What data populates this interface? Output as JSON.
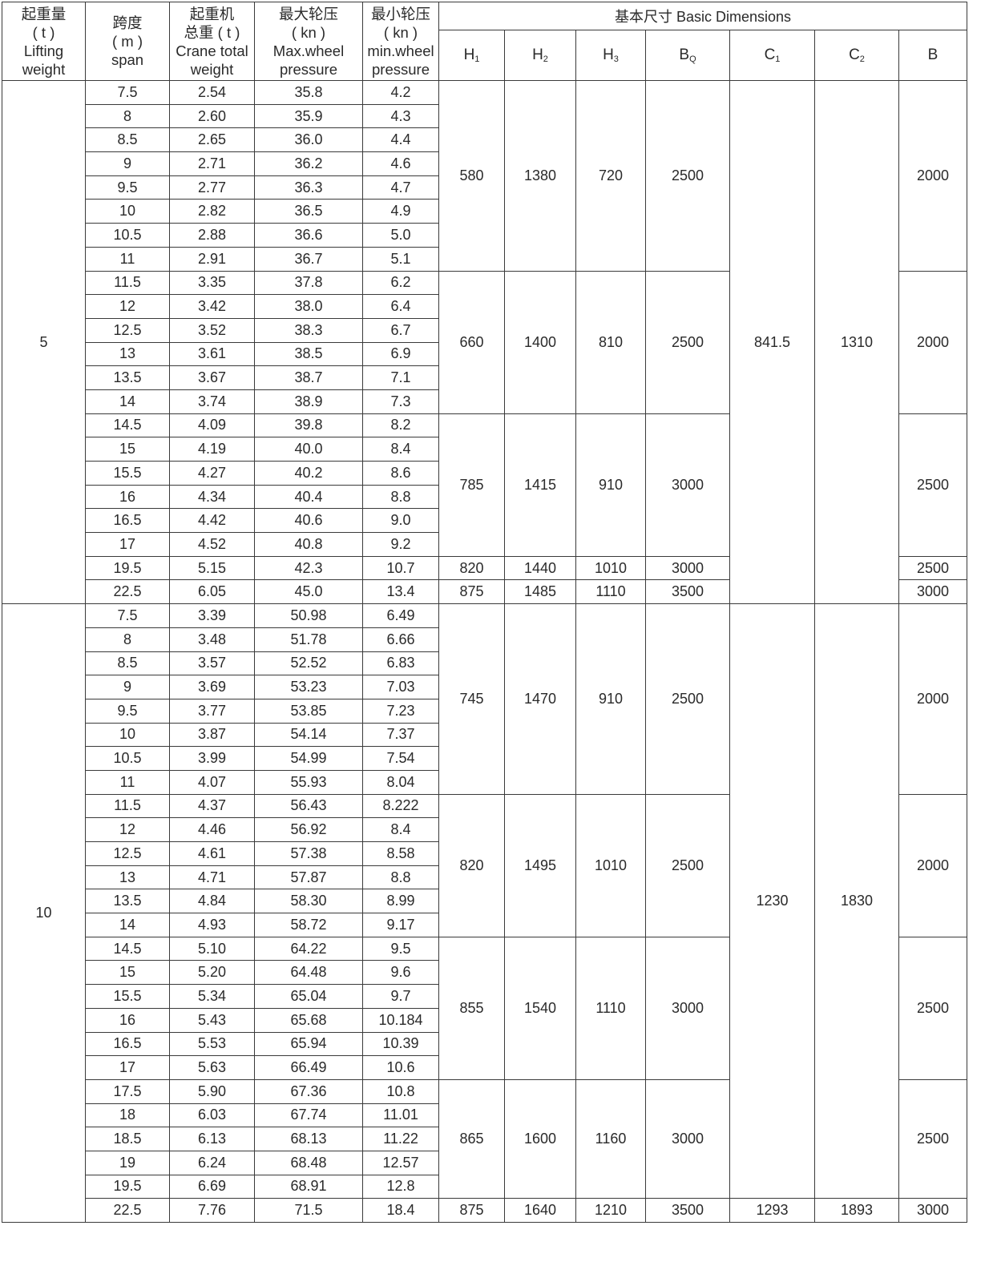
{
  "header": {
    "columns": [
      {
        "lines": [
          "起重量",
          "( t )",
          "Lifting",
          "weight"
        ]
      },
      {
        "lines": [
          "跨度",
          "( m )",
          "span"
        ]
      },
      {
        "lines": [
          "起重机",
          "总重 ( t )",
          "Crane total",
          "weight"
        ]
      },
      {
        "lines": [
          "最大轮压",
          "( kn )",
          "Max.wheel",
          "pressure"
        ]
      },
      {
        "lines": [
          "最小轮压",
          "( kn )",
          "min.wheel",
          "pressure"
        ]
      }
    ],
    "dimensions_title": "基本尺寸 Basic Dimensions",
    "dimensions": [
      {
        "base": "H",
        "sub": "1"
      },
      {
        "base": "H",
        "sub": "2"
      },
      {
        "base": "H",
        "sub": "3"
      },
      {
        "base": "B",
        "sub": "Q"
      },
      {
        "base": "C",
        "sub": "1"
      },
      {
        "base": "C",
        "sub": "2"
      },
      {
        "base": "B",
        "sub": ""
      }
    ]
  },
  "groups": [
    {
      "lifting": "5",
      "rows": [
        [
          "7.5",
          "2.54",
          "35.8",
          "4.2"
        ],
        [
          "8",
          "2.60",
          "35.9",
          "4.3"
        ],
        [
          "8.5",
          "2.65",
          "36.0",
          "4.4"
        ],
        [
          "9",
          "2.71",
          "36.2",
          "4.6"
        ],
        [
          "9.5",
          "2.77",
          "36.3",
          "4.7"
        ],
        [
          "10",
          "2.82",
          "36.5",
          "4.9"
        ],
        [
          "10.5",
          "2.88",
          "36.6",
          "5.0"
        ],
        [
          "11",
          "2.91",
          "36.7",
          "5.1"
        ],
        [
          "11.5",
          "3.35",
          "37.8",
          "6.2"
        ],
        [
          "12",
          "3.42",
          "38.0",
          "6.4"
        ],
        [
          "12.5",
          "3.52",
          "38.3",
          "6.7"
        ],
        [
          "13",
          "3.61",
          "38.5",
          "6.9"
        ],
        [
          "13.5",
          "3.67",
          "38.7",
          "7.1"
        ],
        [
          "14",
          "3.74",
          "38.9",
          "7.3"
        ],
        [
          "14.5",
          "4.09",
          "39.8",
          "8.2"
        ],
        [
          "15",
          "4.19",
          "40.0",
          "8.4"
        ],
        [
          "15.5",
          "4.27",
          "40.2",
          "8.6"
        ],
        [
          "16",
          "4.34",
          "40.4",
          "8.8"
        ],
        [
          "16.5",
          "4.42",
          "40.6",
          "9.0"
        ],
        [
          "17",
          "4.52",
          "40.8",
          "9.2"
        ],
        [
          "19.5",
          "5.15",
          "42.3",
          "10.7"
        ],
        [
          "22.5",
          "6.05",
          "45.0",
          "13.4"
        ]
      ],
      "dims": [
        {
          "rows": 8,
          "H1": "580",
          "H2": "1380",
          "H3": "720",
          "BQ": "2500",
          "B": "2000"
        },
        {
          "rows": 6,
          "H1": "660",
          "H2": "1400",
          "H3": "810",
          "BQ": "2500",
          "B": "2000"
        },
        {
          "rows": 6,
          "H1": "785",
          "H2": "1415",
          "H3": "910",
          "BQ": "3000",
          "B": "2500"
        },
        {
          "rows": 1,
          "H1": "820",
          "H2": "1440",
          "H3": "1010",
          "BQ": "3000",
          "B": "2500"
        },
        {
          "rows": 1,
          "H1": "875",
          "H2": "1485",
          "H3": "1110",
          "BQ": "3500",
          "B": "3000"
        }
      ],
      "c": [
        {
          "rows": 22,
          "C1": "841.5",
          "C2": "1310"
        }
      ]
    },
    {
      "lifting": "10",
      "rows": [
        [
          "7.5",
          "3.39",
          "50.98",
          "6.49"
        ],
        [
          "8",
          "3.48",
          "51.78",
          "6.66"
        ],
        [
          "8.5",
          "3.57",
          "52.52",
          "6.83"
        ],
        [
          "9",
          "3.69",
          "53.23",
          "7.03"
        ],
        [
          "9.5",
          "3.77",
          "53.85",
          "7.23"
        ],
        [
          "10",
          "3.87",
          "54.14",
          "7.37"
        ],
        [
          "10.5",
          "3.99",
          "54.99",
          "7.54"
        ],
        [
          "11",
          "4.07",
          "55.93",
          "8.04"
        ],
        [
          "11.5",
          "4.37",
          "56.43",
          "8.222"
        ],
        [
          "12",
          "4.46",
          "56.92",
          "8.4"
        ],
        [
          "12.5",
          "4.61",
          "57.38",
          "8.58"
        ],
        [
          "13",
          "4.71",
          "57.87",
          "8.8"
        ],
        [
          "13.5",
          "4.84",
          "58.30",
          "8.99"
        ],
        [
          "14",
          "4.93",
          "58.72",
          "9.17"
        ],
        [
          "14.5",
          "5.10",
          "64.22",
          "9.5"
        ],
        [
          "15",
          "5.20",
          "64.48",
          "9.6"
        ],
        [
          "15.5",
          "5.34",
          "65.04",
          "9.7"
        ],
        [
          "16",
          "5.43",
          "65.68",
          "10.184"
        ],
        [
          "16.5",
          "5.53",
          "65.94",
          "10.39"
        ],
        [
          "17",
          "5.63",
          "66.49",
          "10.6"
        ],
        [
          "17.5",
          "5.90",
          "67.36",
          "10.8"
        ],
        [
          "18",
          "6.03",
          "67.74",
          "11.01"
        ],
        [
          "18.5",
          "6.13",
          "68.13",
          "11.22"
        ],
        [
          "19",
          "6.24",
          "68.48",
          "12.57"
        ],
        [
          "19.5",
          "6.69",
          "68.91",
          "12.8"
        ],
        [
          "22.5",
          "7.76",
          "71.5",
          "18.4"
        ]
      ],
      "dims": [
        {
          "rows": 8,
          "H1": "745",
          "H2": "1470",
          "H3": "910",
          "BQ": "2500",
          "B": "2000"
        },
        {
          "rows": 6,
          "H1": "820",
          "H2": "1495",
          "H3": "1010",
          "BQ": "2500",
          "B": "2000"
        },
        {
          "rows": 6,
          "H1": "855",
          "H2": "1540",
          "H3": "1110",
          "BQ": "3000",
          "B": "2500"
        },
        {
          "rows": 5,
          "H1": "865",
          "H2": "1600",
          "H3": "1160",
          "BQ": "3000",
          "B": "2500"
        },
        {
          "rows": 1,
          "H1": "875",
          "H2": "1640",
          "H3": "1210",
          "BQ": "3500",
          "B": "3000"
        }
      ],
      "c": [
        {
          "rows": 25,
          "C1": "1230",
          "C2": "1830"
        },
        {
          "rows": 1,
          "C1": "1293",
          "C2": "1893"
        }
      ]
    }
  ]
}
